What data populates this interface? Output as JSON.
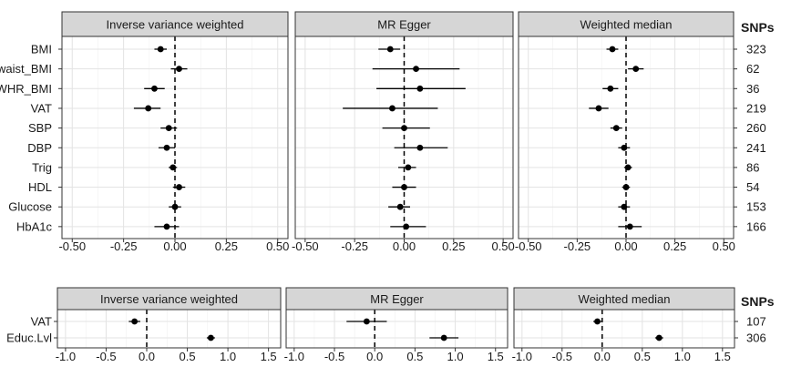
{
  "chart_data": [
    {
      "type": "scatter",
      "subtype": "forest-plot",
      "panels": [
        "Inverse variance weighted",
        "MR Egger",
        "Weighted median"
      ],
      "categories": [
        "BMI",
        "waist_BMI",
        "WHR_BMI",
        "VAT",
        "SBP",
        "DBP",
        "Trig",
        "HDL",
        "Glucose",
        "HbA1c"
      ],
      "snps_header": "SNPs",
      "snps": [
        "323",
        "62",
        "36",
        "219",
        "260",
        "241",
        "86",
        "54",
        "153",
        "166"
      ],
      "xlim": [
        -0.55,
        0.55
      ],
      "xticks": [
        "-0.50",
        "-0.25",
        "0.00",
        "0.25",
        "0.50"
      ],
      "reference_line": 0,
      "series": [
        {
          "name": "Inverse variance weighted",
          "estimate": [
            -0.07,
            0.02,
            -0.1,
            -0.13,
            -0.03,
            -0.04,
            -0.01,
            0.02,
            0.0,
            -0.04
          ],
          "lower": [
            -0.1,
            -0.02,
            -0.15,
            -0.2,
            -0.07,
            -0.08,
            -0.03,
            -0.01,
            -0.03,
            -0.1
          ],
          "upper": [
            -0.04,
            0.06,
            -0.05,
            -0.07,
            0.01,
            0.0,
            0.01,
            0.05,
            0.03,
            0.02
          ]
        },
        {
          "name": "MR Egger",
          "estimate": [
            -0.07,
            0.06,
            0.08,
            -0.06,
            0.0,
            0.08,
            0.02,
            0.0,
            -0.02,
            0.01
          ],
          "lower": [
            -0.13,
            -0.16,
            -0.14,
            -0.31,
            -0.11,
            -0.05,
            -0.03,
            -0.06,
            -0.08,
            -0.07
          ],
          "upper": [
            -0.02,
            0.28,
            0.31,
            0.17,
            0.13,
            0.22,
            0.06,
            0.06,
            0.03,
            0.11
          ]
        },
        {
          "name": "Weighted median",
          "estimate": [
            -0.07,
            0.05,
            -0.08,
            -0.14,
            -0.05,
            -0.01,
            0.01,
            0.0,
            -0.01,
            0.02
          ],
          "lower": [
            -0.1,
            0.01,
            -0.12,
            -0.19,
            -0.08,
            -0.04,
            -0.01,
            -0.02,
            -0.04,
            -0.04
          ],
          "upper": [
            -0.04,
            0.09,
            -0.04,
            -0.09,
            -0.02,
            0.02,
            0.03,
            0.02,
            0.02,
            0.08
          ]
        }
      ]
    },
    {
      "type": "scatter",
      "subtype": "forest-plot",
      "panels": [
        "Inverse variance weighted",
        "MR Egger",
        "Weighted median"
      ],
      "categories": [
        "VAT",
        "Educ.Lvl"
      ],
      "snps_header": "SNPs",
      "snps": [
        "107",
        "306"
      ],
      "xlim": [
        -1.1,
        1.65
      ],
      "xticks": [
        "-1.0",
        "-0.5",
        "0.0",
        "0.5",
        "1.0",
        "1.5"
      ],
      "reference_line": 0,
      "series": [
        {
          "name": "Inverse variance weighted",
          "estimate": [
            -0.15,
            0.79
          ],
          "lower": [
            -0.22,
            0.74
          ],
          "upper": [
            -0.08,
            0.84
          ]
        },
        {
          "name": "MR Egger",
          "estimate": [
            -0.1,
            0.86
          ],
          "lower": [
            -0.35,
            0.68
          ],
          "upper": [
            0.15,
            1.04
          ]
        },
        {
          "name": "Weighted median",
          "estimate": [
            -0.06,
            0.71
          ],
          "lower": [
            -0.11,
            0.66
          ],
          "upper": [
            -0.01,
            0.76
          ]
        }
      ]
    }
  ]
}
